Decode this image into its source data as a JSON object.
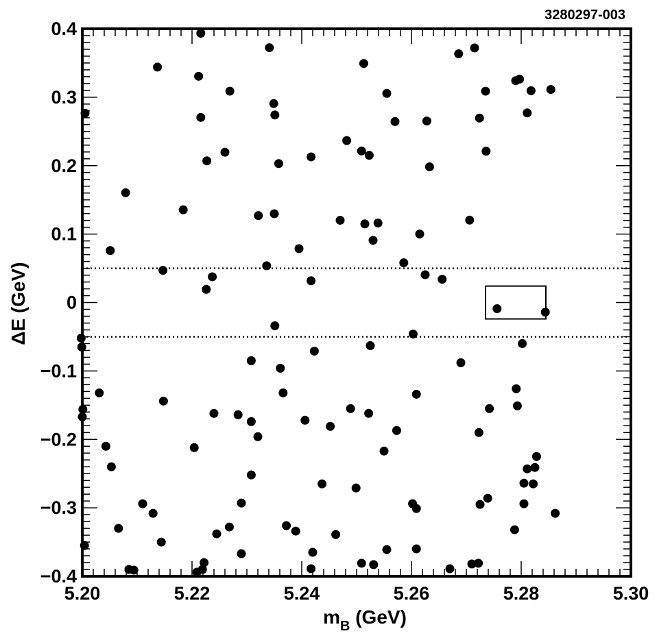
{
  "figure_code": "3280297-003",
  "chart_data": {
    "type": "scatter",
    "xlabel": {
      "main": "m",
      "sub": "B",
      "unit": " (GeV)"
    },
    "ylabel": "ΔE (GeV)",
    "xlim": [
      5.2,
      5.3
    ],
    "ylim": [
      -0.4,
      0.4
    ],
    "x_ticks": [
      "5.20",
      "5.22",
      "5.24",
      "5.26",
      "5.28",
      "5.30"
    ],
    "x_tick_values": [
      5.2,
      5.22,
      5.24,
      5.26,
      5.28,
      5.3
    ],
    "y_ticks": [
      "0.4",
      "0.3",
      "0.2",
      "0.1",
      "0",
      "−0.1",
      "−0.2",
      "−0.3",
      "−0.4"
    ],
    "y_tick_values": [
      0.4,
      0.3,
      0.2,
      0.1,
      0,
      -0.1,
      -0.2,
      -0.3,
      -0.4
    ],
    "grid": false,
    "reference_lines": {
      "style": "dotted",
      "y": [
        0.05,
        -0.05
      ]
    },
    "signal_box": {
      "x": [
        5.2735,
        5.2845
      ],
      "y": [
        -0.024,
        0.024
      ]
    },
    "points": [
      [
        5.2005,
        0.2766
      ],
      [
        5.2051,
        0.076
      ],
      [
        5.2079,
        0.1604
      ],
      [
        5.2137,
        0.344
      ],
      [
        5.2147,
        0.047
      ],
      [
        5.2184,
        0.1355
      ],
      [
        5.2212,
        0.3306
      ],
      [
        5.2216,
        0.3935
      ],
      [
        5.2216,
        0.2705
      ],
      [
        5.2226,
        0.0193
      ],
      [
        5.2227,
        0.207
      ],
      [
        5.2237,
        0.0376
      ],
      [
        5.226,
        0.2196
      ],
      [
        5.2269,
        0.3088
      ],
      [
        5.2321,
        0.127
      ],
      [
        5.2336,
        0.0537
      ],
      [
        5.2341,
        0.3724
      ],
      [
        5.2349,
        0.2907
      ],
      [
        5.235,
        0.1297
      ],
      [
        5.2351,
        0.2741
      ],
      [
        5.2358,
        0.203
      ],
      [
        5.2395,
        0.0787
      ],
      [
        5.2417,
        0.0318
      ],
      [
        5.2417,
        0.2128
      ],
      [
        5.247,
        0.1202
      ],
      [
        5.2482,
        0.2367
      ],
      [
        5.2509,
        0.2214
      ],
      [
        5.2513,
        0.3493
      ],
      [
        5.2515,
        0.1149
      ],
      [
        5.2523,
        0.2151
      ],
      [
        5.253,
        0.0909
      ],
      [
        5.2539,
        0.1162
      ],
      [
        5.2555,
        0.3056
      ],
      [
        5.257,
        0.2644
      ],
      [
        5.2586,
        0.0581
      ],
      [
        5.2615,
        0.1001
      ],
      [
        5.2625,
        0.0406
      ],
      [
        5.2628,
        0.2652
      ],
      [
        5.2633,
        0.1983
      ],
      [
        5.2656,
        0.034
      ],
      [
        5.2686,
        0.3634
      ],
      [
        5.2706,
        0.1204
      ],
      [
        5.2715,
        0.372
      ],
      [
        5.2724,
        0.2695
      ],
      [
        5.2735,
        0.3088
      ],
      [
        5.2736,
        0.2211
      ],
      [
        5.279,
        0.3242
      ],
      [
        5.2797,
        0.3264
      ],
      [
        5.2811,
        0.2771
      ],
      [
        5.2818,
        0.3095
      ],
      [
        5.2854,
        0.3113
      ],
      [
        5.2756,
        -0.009
      ],
      [
        5.2844,
        -0.014
      ],
      [
        5.1998,
        -0.052
      ],
      [
        5.1999,
        -0.065
      ],
      [
        5.2,
        -0.167
      ],
      [
        5.2001,
        -0.156
      ],
      [
        5.2004,
        -0.355
      ],
      [
        5.2031,
        -0.132
      ],
      [
        5.2043,
        -0.21
      ],
      [
        5.2053,
        -0.24
      ],
      [
        5.2066,
        -0.33
      ],
      [
        5.2085,
        -0.39
      ],
      [
        5.2094,
        -0.391
      ],
      [
        5.211,
        -0.294
      ],
      [
        5.2129,
        -0.308
      ],
      [
        5.2144,
        -0.35
      ],
      [
        5.2148,
        -0.144
      ],
      [
        5.2204,
        -0.212
      ],
      [
        5.2209,
        -0.394
      ],
      [
        5.2219,
        -0.39
      ],
      [
        5.2222,
        -0.38
      ],
      [
        5.224,
        -0.162
      ],
      [
        5.2245,
        -0.338
      ],
      [
        5.2268,
        -0.328
      ],
      [
        5.2284,
        -0.164
      ],
      [
        5.229,
        -0.293
      ],
      [
        5.229,
        -0.367
      ],
      [
        5.2308,
        -0.085
      ],
      [
        5.2308,
        -0.174
      ],
      [
        5.2308,
        -0.252
      ],
      [
        5.232,
        -0.196
      ],
      [
        5.2351,
        -0.034
      ],
      [
        5.2361,
        -0.096
      ],
      [
        5.2366,
        -0.132
      ],
      [
        5.2372,
        -0.326
      ],
      [
        5.2389,
        -0.334
      ],
      [
        5.2406,
        -0.172
      ],
      [
        5.2417,
        -0.389
      ],
      [
        5.242,
        -0.365
      ],
      [
        5.2423,
        -0.071
      ],
      [
        5.2437,
        -0.265
      ],
      [
        5.2452,
        -0.181
      ],
      [
        5.2462,
        -0.339
      ],
      [
        5.2489,
        -0.155
      ],
      [
        5.2499,
        -0.271
      ],
      [
        5.2509,
        -0.381
      ],
      [
        5.2522,
        -0.162
      ],
      [
        5.2525,
        -0.063
      ],
      [
        5.2531,
        -0.383
      ],
      [
        5.255,
        -0.217
      ],
      [
        5.2555,
        -0.361
      ],
      [
        5.2573,
        -0.187
      ],
      [
        5.2602,
        -0.294
      ],
      [
        5.2603,
        -0.046
      ],
      [
        5.2609,
        -0.301
      ],
      [
        5.2609,
        -0.134
      ],
      [
        5.2609,
        -0.36
      ],
      [
        5.267,
        -0.389
      ],
      [
        5.269,
        -0.088
      ],
      [
        5.271,
        -0.382
      ],
      [
        5.2722,
        -0.381
      ],
      [
        5.2723,
        -0.19
      ],
      [
        5.2725,
        -0.295
      ],
      [
        5.2739,
        -0.286
      ],
      [
        5.2742,
        -0.155
      ],
      [
        5.2788,
        -0.332
      ],
      [
        5.2791,
        -0.126
      ],
      [
        5.2793,
        -0.151
      ],
      [
        5.2802,
        -0.06
      ],
      [
        5.2805,
        -0.264
      ],
      [
        5.2805,
        -0.294
      ],
      [
        5.2811,
        -0.243
      ],
      [
        5.2822,
        -0.265
      ],
      [
        5.2825,
        -0.241
      ],
      [
        5.2828,
        -0.225
      ],
      [
        5.2862,
        -0.308
      ]
    ]
  }
}
